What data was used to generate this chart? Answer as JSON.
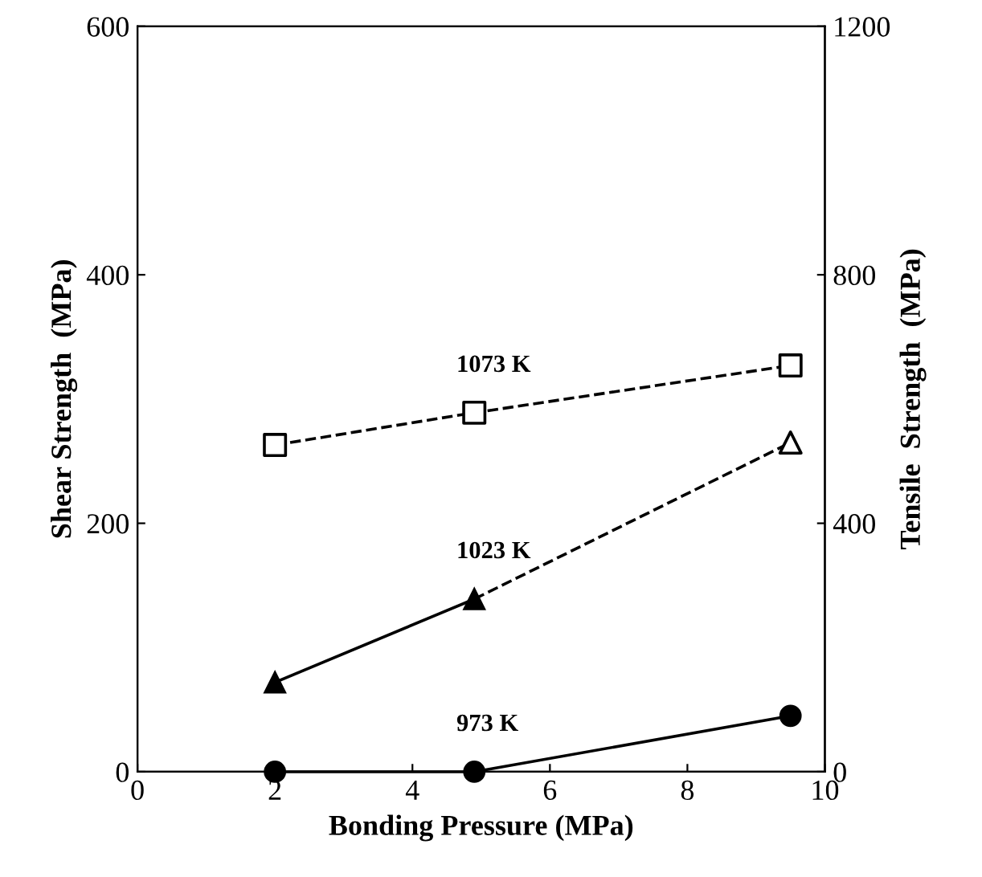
{
  "chart_data": {
    "type": "line",
    "xlabel": "Bonding Pressure (MPa)",
    "ylabel": "Shear Strength  (MPa)",
    "y2label": "Tensile  Strength  (MPa)",
    "xlim": [
      0,
      10
    ],
    "xticks": [
      0,
      2,
      4,
      6,
      8,
      10
    ],
    "ylim": [
      0,
      600
    ],
    "yticks": [
      0,
      200,
      400,
      600
    ],
    "y2lim": [
      0,
      1200
    ],
    "y2ticks": [
      0,
      400,
      800,
      1200
    ],
    "grid": false,
    "legend": false,
    "series": [
      {
        "name": "973 K",
        "x": [
          2,
          4.9,
          9.5
        ],
        "values": [
          0,
          0,
          45
        ],
        "color": "#000000",
        "marker": "circle",
        "line_style": "solid"
      },
      {
        "name": "1023 K",
        "x": [
          2,
          4.9
        ],
        "values": [
          72,
          139
        ],
        "color": "#000000",
        "marker": "triangle",
        "line_style": "solid"
      },
      {
        "x": [
          4.9,
          9.5
        ],
        "values": [
          139,
          265
        ],
        "color": "#000000",
        "marker": "none",
        "line_style": "dashed"
      },
      {
        "x": [
          9.5
        ],
        "values": [
          265
        ],
        "color": "#000000",
        "colors": [
          "#ffffff"
        ],
        "marker": "triangle",
        "line_style": "none"
      },
      {
        "name": "1073 K",
        "x": [
          2,
          4.9,
          9.5
        ],
        "values": [
          263,
          289,
          327
        ],
        "color": "#000000",
        "colors": [
          "#ffffff",
          "#ffffff",
          "#ffffff"
        ],
        "marker": "square",
        "line_style": "dashed"
      }
    ]
  }
}
